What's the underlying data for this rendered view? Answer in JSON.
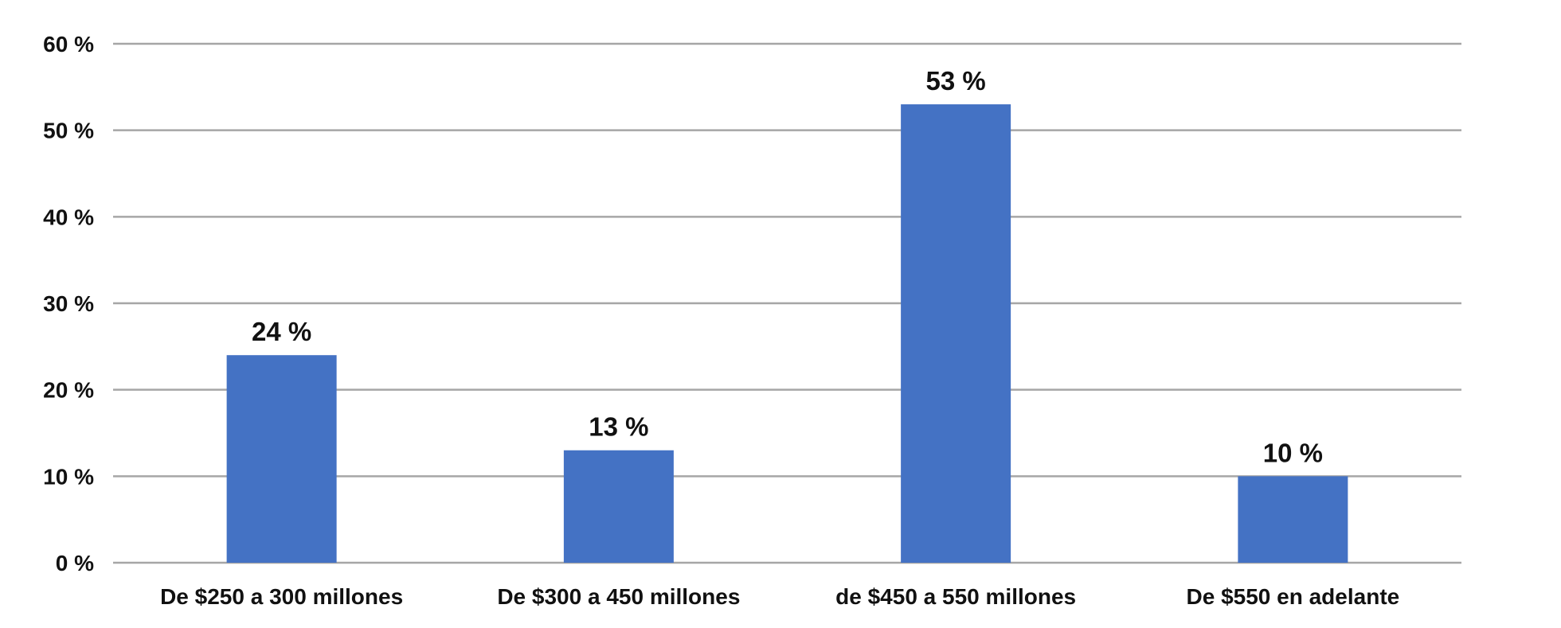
{
  "chart_data": {
    "type": "bar",
    "categories": [
      "De $250 a 300 millones",
      "De $300 a 450 millones",
      "de $450 a 550 millones",
      "De $550 en adelante"
    ],
    "values": [
      24,
      13,
      53,
      10
    ],
    "value_labels": [
      "24 %",
      "13 %",
      "53 %",
      "10 %"
    ],
    "title": "",
    "xlabel": "",
    "ylabel": "",
    "ylim": [
      0,
      60
    ],
    "yticks": [
      0,
      10,
      20,
      30,
      40,
      50,
      60
    ],
    "ytick_labels": [
      "0 %",
      "10 %",
      "20 %",
      "30 %",
      "40 %",
      "50 %",
      "60 %"
    ],
    "grid": true,
    "legend": "none",
    "bar_color": "#4472c4"
  }
}
